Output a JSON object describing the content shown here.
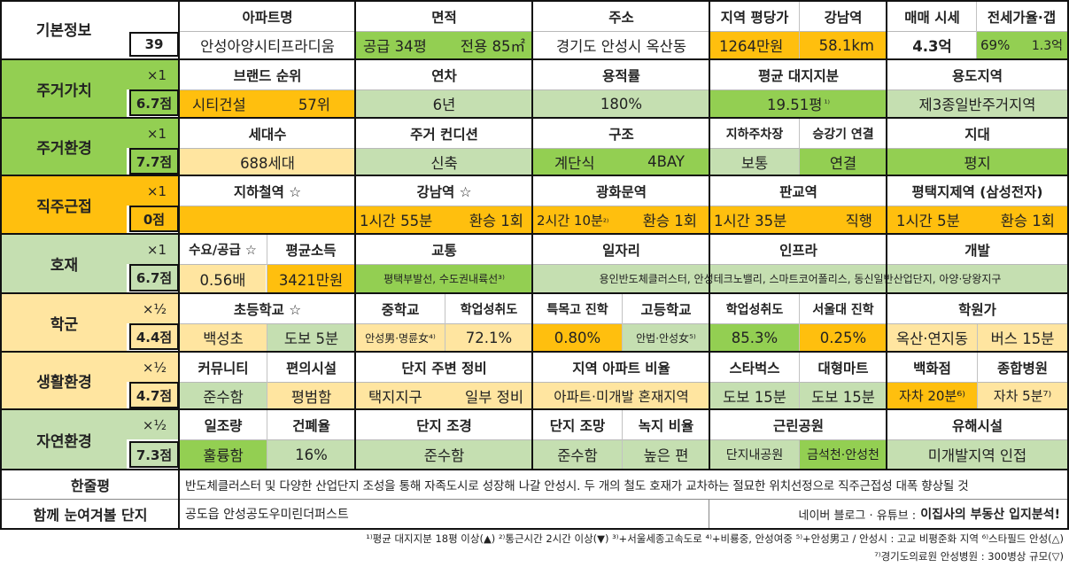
{
  "basic": {
    "label": "기본정보",
    "number": "39",
    "headers": [
      "아파트명",
      "면적",
      "주소",
      "지역 평당가",
      "강남역",
      "매매 시세",
      "전세가율·갭"
    ],
    "apt_name": "안성아양시티프라디움",
    "area_supply": "공급 34평",
    "area_exclusive": "전용 85㎡",
    "address": "경기도 안성시 옥산동",
    "price_per_pyeong": "1264만원",
    "gangnam_distance": "58.1km",
    "sale_price": "4.3억",
    "jeonse_ratio": "69%",
    "gap": "1.3억"
  },
  "sections": [
    {
      "label": "주거가치",
      "mult": "×1",
      "score": "6.7점",
      "headers": [
        "브랜드 순위",
        "연차",
        "용적률",
        "평균 대지지분",
        "용도지역"
      ],
      "brand": "시티건설",
      "brand_rank": "57위",
      "age": "6년",
      "far": "180%",
      "land_share": "19.51평",
      "land_share_mark": "¹⁾",
      "zone": "제3종일반주거지역"
    },
    {
      "label": "주거환경",
      "mult": "×1",
      "score": "7.7점",
      "headers": [
        "세대수",
        "주거 컨디션",
        "구조",
        "지하주차장",
        "승강기 연결",
        "지대"
      ],
      "households": "688세대",
      "condition": "신축",
      "structure": "계단식",
      "bay": "4BAY",
      "parking": "보통",
      "elevator": "연결",
      "terrain": "평지"
    },
    {
      "label": "직주근접",
      "mult": "×1",
      "score": "0점",
      "headers": [
        "지하철역 ☆",
        "강남역 ☆",
        "광화문역",
        "판교역",
        "평택지제역 (삼성전자)"
      ],
      "gangnam_time": "1시간 55분",
      "gangnam_transfer": "환승 1회",
      "gwanghwamun_time": "2시간 10분",
      "gwanghwamun_mark": "²⁾",
      "gwanghwamun_transfer": "환승 1회",
      "pangyo_time": "1시간 35분",
      "pangyo_transfer": "직행",
      "pyeongtaek_time": "1시간 5분",
      "pyeongtaek_transfer": "환승 1회"
    },
    {
      "label": "호재",
      "mult": "×1",
      "score": "6.7점",
      "headers": [
        "수요/공급 ☆",
        "평균소득",
        "교통",
        "일자리",
        "인프라",
        "개발"
      ],
      "supply_demand": "0.56배",
      "income": "3421만원",
      "transport": "평택부발선, 수도권내륙선³⁾",
      "jobs_infra": "용인반도체클러스터, 안성테크노밸리, 스마트코어폴리스, 동신일반산업단지, 아양·당왕지구"
    },
    {
      "label": "학군",
      "mult": "×½",
      "score": "4.4점",
      "headers": [
        "초등학교 ☆",
        "중학교",
        "학업성취도",
        "특목고 진학",
        "고등학교",
        "학업성취도",
        "서울대 진학",
        "학원가"
      ],
      "elementary": "백성초",
      "elementary_walk": "도보 5분",
      "middle": "안성男·명륜女⁴⁾",
      "middle_score": "72.1%",
      "special_hs": "0.80%",
      "high": "안법·안성女⁵⁾",
      "high_score": "85.3%",
      "snu": "0.25%",
      "academy": "옥산·연지동",
      "academy_bus": "버스 15분"
    },
    {
      "label": "생활환경",
      "mult": "×½",
      "score": "4.7점",
      "headers": [
        "커뮤니티",
        "편의시설",
        "단지 주변 정비",
        "지역 아파트 비율",
        "스타벅스",
        "대형마트",
        "백화점",
        "종합병원"
      ],
      "community": "준수함",
      "amenities": "평범함",
      "surroundings_a": "택지지구",
      "surroundings_b": "일부 정비",
      "apt_ratio": "아파트·미개발 혼재지역",
      "starbucks": "도보 15분",
      "mart": "도보 15분",
      "dept": "자차 20분⁶⁾",
      "hospital": "자차 5분⁷⁾"
    },
    {
      "label": "자연환경",
      "mult": "×½",
      "score": "7.3점",
      "headers": [
        "일조량",
        "건폐율",
        "단지 조경",
        "단지 조망",
        "녹지 비율",
        "근린공원",
        "유해시설"
      ],
      "sunlight": "훌륭함",
      "bcr": "16%",
      "landscape": "준수함",
      "view": "준수함",
      "green": "높은 편",
      "park_a": "단지내공원",
      "park_b": "금석천·안성천",
      "hazard": "미개발지역 인접"
    }
  ],
  "summary": {
    "label": "한줄평",
    "text": "반도체클러스터 및 다양한 산업단지 조성을 통해 자족도시로 성장해 나갈 안성시. 두 개의 철도 호재가 교차하는 절묘한 위치선정으로 직주근접성 대폭 향상될 것"
  },
  "together": {
    "label": "함께 눈여겨볼 단지",
    "value": "공도읍 안성공도우미린더퍼스트",
    "source": "네이버 블로그 · 유튜브 :",
    "channel": "이집사의 부동산 입지분석!"
  },
  "footnotes": {
    "line1": "¹⁾평균 대지지분 18평 이상(▲) ²⁾통근시간 2시간 이상(▼) ³⁾+서울세종고속도로 ⁴⁾+비룡중, 안성여중 ⁵⁾+안성男고 / 안성시 : 고교 비평준화 지역 ⁶⁾스타필드 안성(△)",
    "line2": "⁷⁾경기도의료원 안성병원 : 300병상 규모(▽)"
  }
}
